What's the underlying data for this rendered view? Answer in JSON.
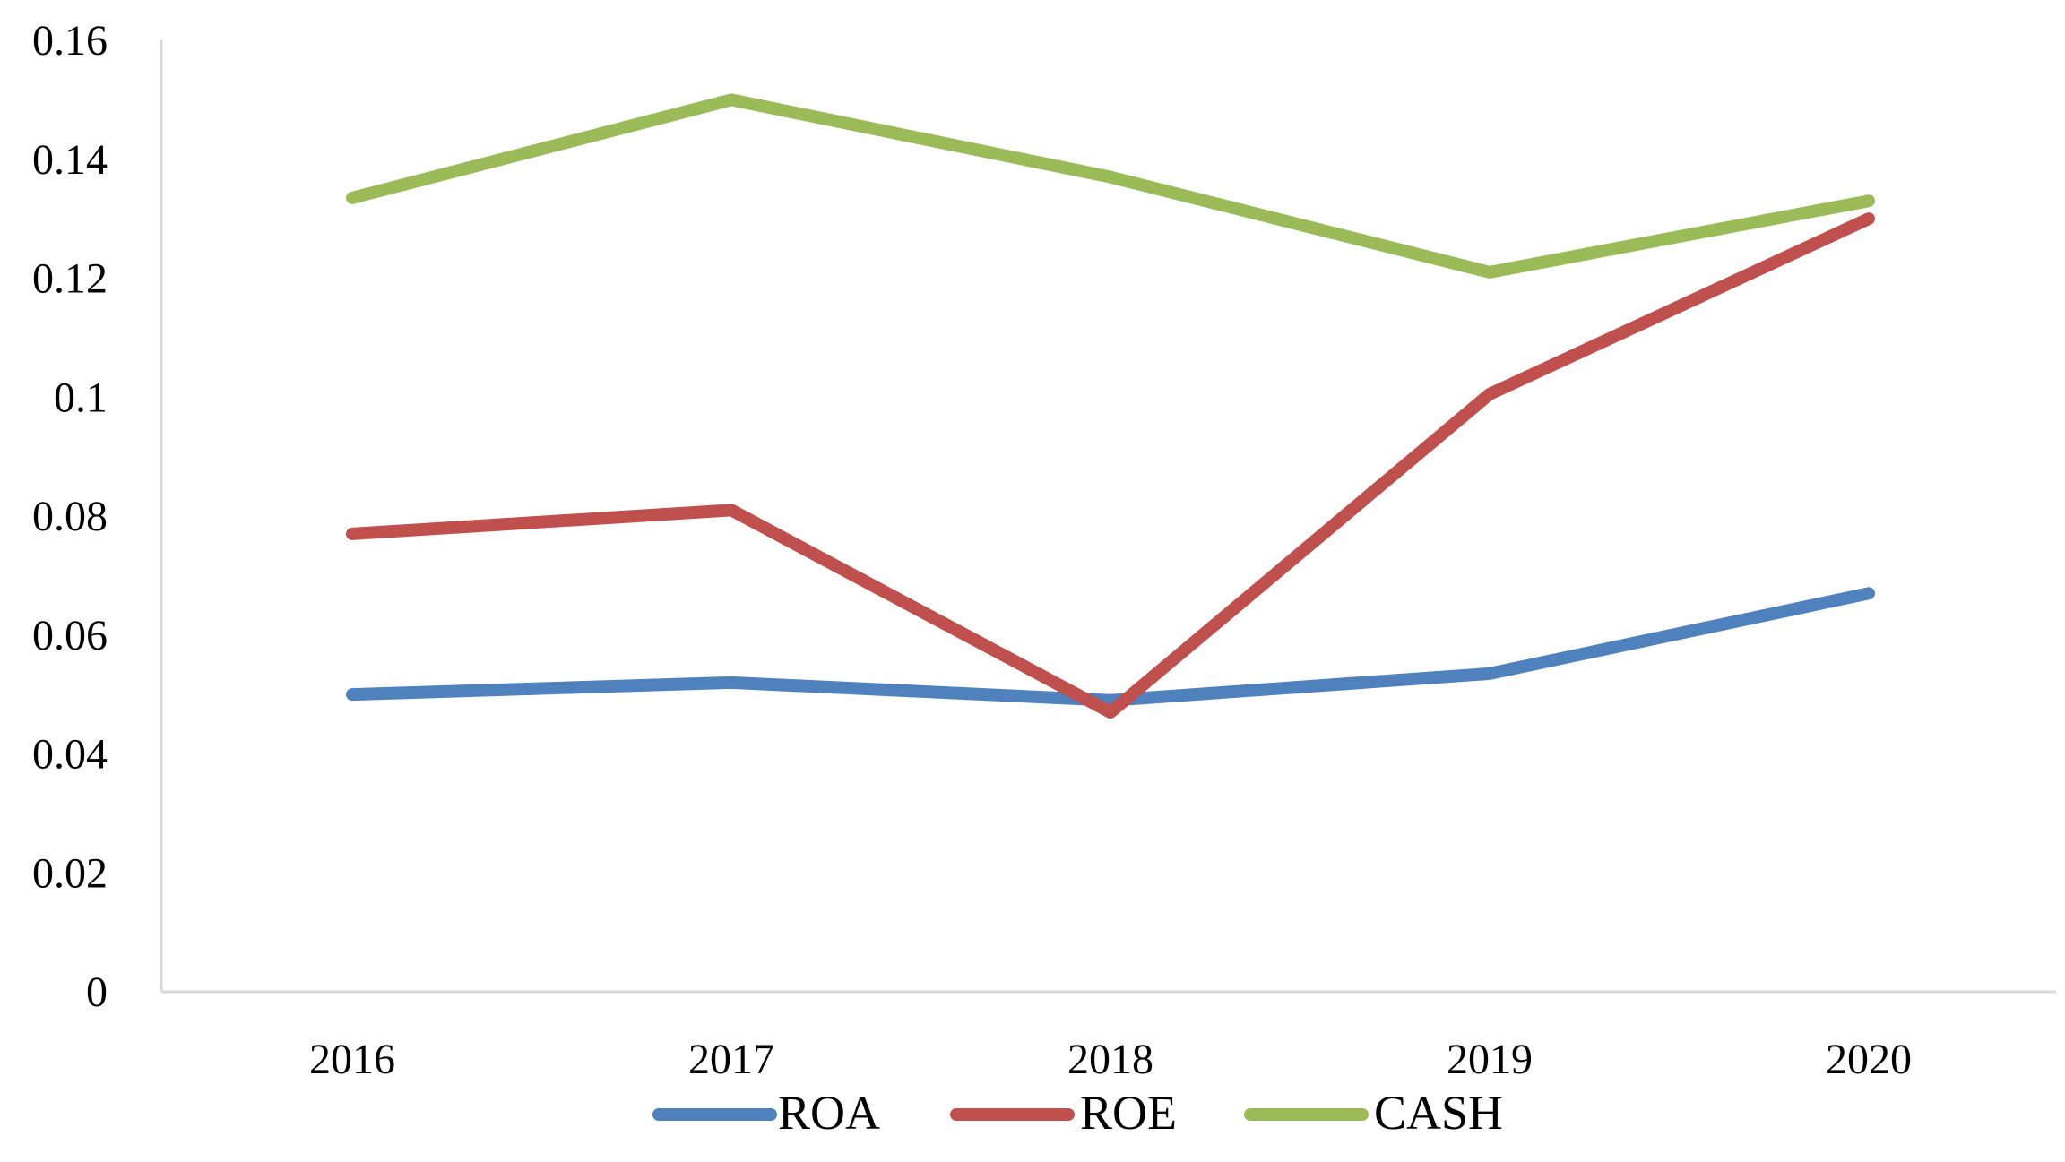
{
  "chart_data": {
    "type": "line",
    "title": "",
    "xlabel": "",
    "ylabel": "",
    "categories": [
      "2016",
      "2017",
      "2018",
      "2019",
      "2020"
    ],
    "ylim": [
      0,
      0.16
    ],
    "y_ticks": [
      {
        "value": 0,
        "label": "0"
      },
      {
        "value": 0.02,
        "label": "0.02"
      },
      {
        "value": 0.04,
        "label": "0.04"
      },
      {
        "value": 0.06,
        "label": "0.06"
      },
      {
        "value": 0.08,
        "label": "0.08"
      },
      {
        "value": 0.1,
        "label": "0.1"
      },
      {
        "value": 0.12,
        "label": "0.12"
      },
      {
        "value": 0.14,
        "label": "0.14"
      },
      {
        "value": 0.16,
        "label": "0.16"
      }
    ],
    "grid": false,
    "legend_position": "bottom",
    "series": [
      {
        "name": "ROA",
        "color": "#4f81bd",
        "values": [
          0.05,
          0.052,
          0.049,
          0.0535,
          0.067
        ]
      },
      {
        "name": "ROE",
        "color": "#c0504d",
        "values": [
          0.077,
          0.081,
          0.047,
          0.1005,
          0.13
        ]
      },
      {
        "name": "CASH",
        "color": "#9bbb59",
        "values": [
          0.1335,
          0.15,
          0.137,
          0.121,
          0.133
        ]
      }
    ]
  }
}
